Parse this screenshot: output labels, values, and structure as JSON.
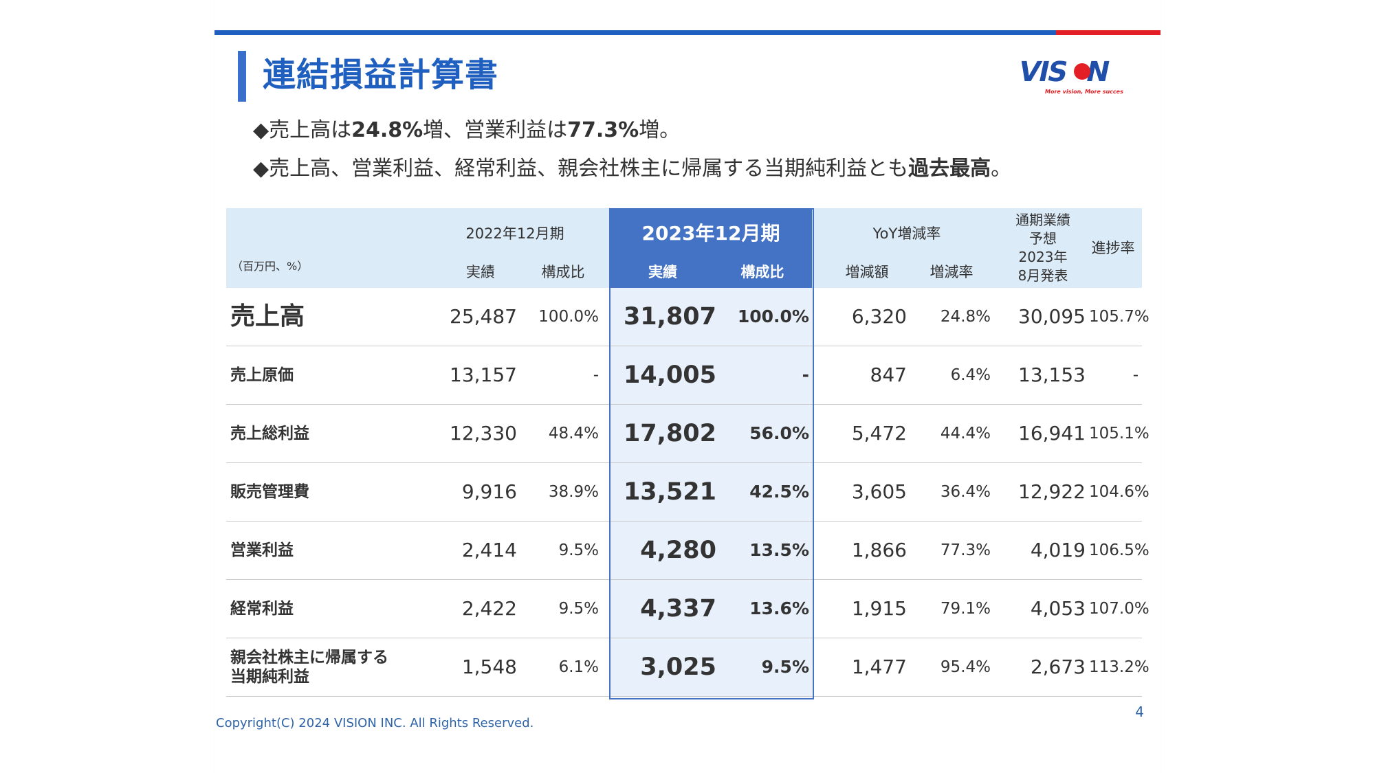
{
  "title": "連結損益計算書",
  "logo": {
    "text": "VISION",
    "tagline": "More vision, More success."
  },
  "colors": {
    "brand_blue": "#1F5FBF",
    "brand_red": "#E31E24",
    "header_bg": "#DCEBF8",
    "highlight_bg": "#4472C4",
    "highlight_body": "#E8F1FB"
  },
  "bullets": [
    {
      "marker": "◆",
      "parts": [
        {
          "text": "売上高は",
          "bold": false
        },
        {
          "text": "24.8%",
          "bold": true
        },
        {
          "text": "増、営業利益は",
          "bold": false
        },
        {
          "text": "77.3%",
          "bold": true
        },
        {
          "text": "増。",
          "bold": false
        }
      ]
    },
    {
      "marker": "◆",
      "parts": [
        {
          "text": "売上高、営業利益、経常利益、親会社株主に帰属する当期純利益とも",
          "bold": false
        },
        {
          "text": "過去最高",
          "bold": true
        },
        {
          "text": "。",
          "bold": false
        }
      ]
    }
  ],
  "table": {
    "unit": "（百万円、%）",
    "prev_period": "2022年12月期",
    "cur_period": "2023年12月期",
    "yoy": "YoY増減率",
    "forecast": "通期業績\n予想\n2023年\n8月発表",
    "forecast_lines": [
      "通期業績",
      "予想",
      "2023年",
      "8月発表"
    ],
    "progress": "進捗率",
    "sub": {
      "actual": "実績",
      "ratio": "構成比",
      "diff": "増減額",
      "rate": "増減率"
    },
    "rows": [
      {
        "label": "売上高",
        "prev": "25,487",
        "prev_ratio": "100.0%",
        "cur": "31,807",
        "cur_ratio": "100.0%",
        "diff": "6,320",
        "rate": "24.8%",
        "forecast": "30,095",
        "progress": "105.7%"
      },
      {
        "label": "売上原価",
        "prev": "13,157",
        "prev_ratio": "-",
        "cur": "14,005",
        "cur_ratio": "-",
        "diff": "847",
        "rate": "6.4%",
        "forecast": "13,153",
        "progress": "-"
      },
      {
        "label": "売上総利益",
        "prev": "12,330",
        "prev_ratio": "48.4%",
        "cur": "17,802",
        "cur_ratio": "56.0%",
        "diff": "5,472",
        "rate": "44.4%",
        "forecast": "16,941",
        "progress": "105.1%"
      },
      {
        "label": "販売管理費",
        "prev": "9,916",
        "prev_ratio": "38.9%",
        "cur": "13,521",
        "cur_ratio": "42.5%",
        "diff": "3,605",
        "rate": "36.4%",
        "forecast": "12,922",
        "progress": "104.6%"
      },
      {
        "label": "営業利益",
        "prev": "2,414",
        "prev_ratio": "9.5%",
        "cur": "4,280",
        "cur_ratio": "13.5%",
        "diff": "1,866",
        "rate": "77.3%",
        "forecast": "4,019",
        "progress": "106.5%"
      },
      {
        "label": "経常利益",
        "prev": "2,422",
        "prev_ratio": "9.5%",
        "cur": "4,337",
        "cur_ratio": "13.6%",
        "diff": "1,915",
        "rate": "79.1%",
        "forecast": "4,053",
        "progress": "107.0%"
      },
      {
        "label_lines": [
          "親会社株主に帰属する",
          "当期純利益"
        ],
        "prev": "1,548",
        "prev_ratio": "6.1%",
        "cur": "3,025",
        "cur_ratio": "9.5%",
        "diff": "1,477",
        "rate": "95.4%",
        "forecast": "2,673",
        "progress": "113.2%"
      }
    ]
  },
  "copyright": "Copyright(C) 2024 VISION INC. All Rights Reserved.",
  "page_number": "4"
}
